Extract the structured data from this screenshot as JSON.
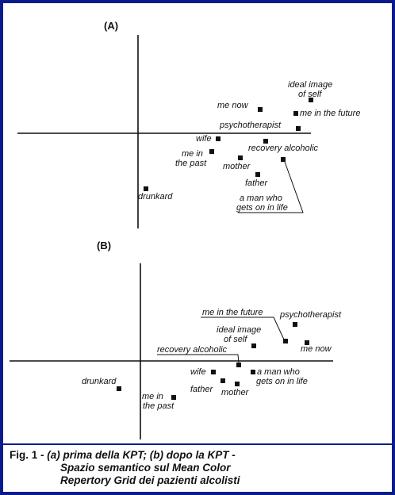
{
  "panels": [
    {
      "id": "a",
      "label": "(A)",
      "items": [
        {
          "id": "ideal",
          "text": [
            "ideal image",
            "of self"
          ]
        },
        {
          "id": "me-now",
          "text": [
            "me now"
          ]
        },
        {
          "id": "future",
          "text": [
            "me in the future"
          ]
        },
        {
          "id": "psycho",
          "text": [
            "psychotherapist"
          ]
        },
        {
          "id": "wife",
          "text": [
            "wife"
          ]
        },
        {
          "id": "recovery",
          "text": [
            "recovery alcoholic"
          ]
        },
        {
          "id": "past",
          "text": [
            "me in",
            "the past"
          ]
        },
        {
          "id": "mother",
          "text": [
            "mother"
          ]
        },
        {
          "id": "father",
          "text": [
            "father"
          ]
        },
        {
          "id": "drunkard",
          "text": [
            "drunkard"
          ]
        },
        {
          "id": "man",
          "text": [
            "a man who",
            "gets on in life"
          ]
        }
      ]
    },
    {
      "id": "b",
      "label": "(B)",
      "items": [
        {
          "id": "future",
          "text": [
            "me in the future"
          ]
        },
        {
          "id": "psycho",
          "text": [
            "psychotherapist"
          ]
        },
        {
          "id": "ideal",
          "text": [
            "ideal image",
            "of self"
          ]
        },
        {
          "id": "me-now",
          "text": [
            "me now"
          ]
        },
        {
          "id": "recovery",
          "text": [
            "recovery alcoholic"
          ]
        },
        {
          "id": "wife",
          "text": [
            "wife"
          ]
        },
        {
          "id": "man",
          "text": [
            "a man who",
            "gets on in life"
          ]
        },
        {
          "id": "father",
          "text": [
            "father"
          ]
        },
        {
          "id": "mother",
          "text": [
            "mother"
          ]
        },
        {
          "id": "drunkard",
          "text": [
            "drunkard"
          ]
        },
        {
          "id": "past",
          "text": [
            "me in",
            "the past"
          ]
        }
      ]
    }
  ],
  "caption": {
    "fig": "Fig. 1 -",
    "line1": "(a) prima della KPT; (b) dopo la KPT -",
    "line2": "Spazio semantico sul Mean Color",
    "line3": "Repertory Grid dei pazienti alcolisti"
  },
  "colors": {
    "frame": "#0a1c8c",
    "ink": "#111111"
  }
}
